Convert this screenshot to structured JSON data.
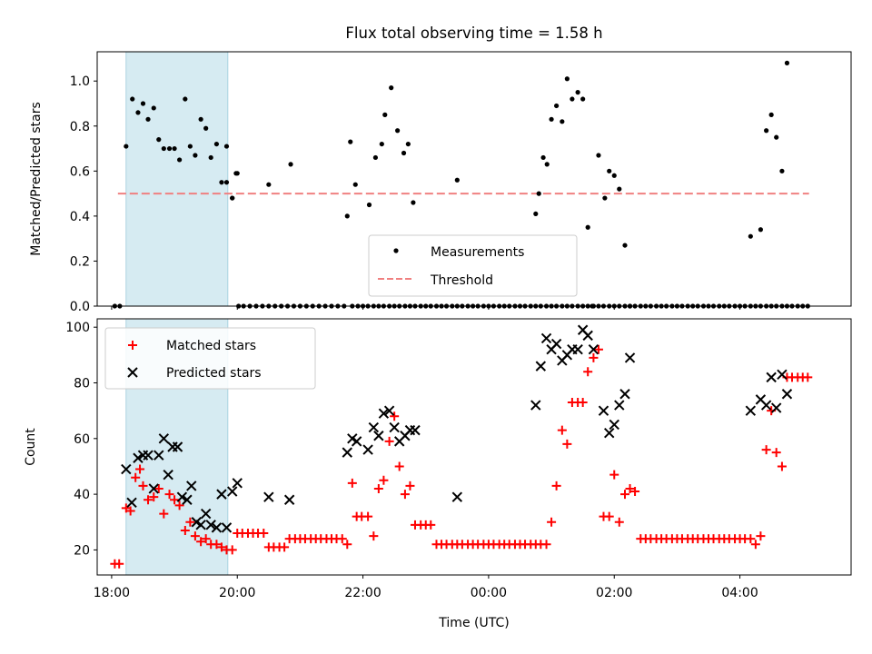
{
  "chart_data": [
    {
      "type": "scatter",
      "title": "Flux total observing time = 1.58 h",
      "xlabel": "",
      "ylabel": "Matched/Predicted stars",
      "xlim": [
        17.77,
        29.77
      ],
      "ylim": [
        0,
        1.13
      ],
      "yticks": [
        0.0,
        0.2,
        0.4,
        0.6,
        0.8,
        1.0
      ],
      "ytick_labels": [
        "0.0",
        "0.2",
        "0.4",
        "0.6",
        "0.8",
        "1.0"
      ],
      "xticks": [
        18,
        20,
        22,
        24,
        26,
        28
      ],
      "highlight_span": [
        18.23,
        19.85
      ],
      "legend": {
        "position": "lower-center",
        "entries": [
          "Measurements",
          "Threshold"
        ]
      },
      "threshold": {
        "name": "Threshold",
        "y": 0.5,
        "x_range": [
          18.1,
          29.1
        ],
        "color": "#f08080"
      },
      "series": [
        {
          "name": "Measurements",
          "marker": "dot",
          "color": "#000000",
          "x": [
            18.05,
            18.13,
            18.23,
            18.33,
            18.42,
            18.5,
            18.58,
            18.67,
            18.75,
            18.83,
            18.92,
            19.0,
            19.08,
            19.17,
            19.25,
            19.33,
            19.42,
            19.5,
            19.58,
            19.67,
            19.75,
            19.83,
            19.92,
            20.0,
            20.02,
            20.1,
            20.2,
            20.3,
            20.4,
            20.5,
            20.6,
            20.7,
            20.8,
            20.9,
            21.0,
            21.1,
            21.2,
            21.3,
            21.4,
            21.5,
            21.6,
            21.7,
            21.83,
            21.92,
            22.0,
            22.08,
            22.17,
            22.25,
            22.33,
            22.42,
            22.5,
            22.58,
            22.67,
            22.75,
            22.83,
            22.92,
            23.0,
            23.08,
            23.17,
            23.25,
            23.33,
            23.42,
            23.5,
            23.58,
            23.67,
            23.75,
            23.83,
            23.92,
            24.0,
            24.08,
            24.17,
            24.25,
            24.33,
            24.42,
            24.5,
            24.58,
            24.67,
            24.75,
            24.83,
            24.92,
            25.0,
            25.08,
            25.17,
            25.25,
            25.33,
            25.42,
            25.5,
            25.58,
            25.67,
            25.75,
            25.83,
            25.92,
            26.0,
            26.08,
            26.17,
            26.25,
            26.33,
            26.42,
            26.5,
            26.58,
            26.67,
            26.75,
            26.83,
            26.92,
            27.0,
            27.08,
            27.17,
            27.25,
            27.33,
            27.42,
            27.5,
            27.58,
            27.67,
            27.75,
            27.83,
            27.92,
            28.0,
            28.08,
            28.17,
            28.25,
            28.33,
            28.42,
            28.5,
            28.58,
            28.67,
            28.75,
            28.83,
            28.92,
            29.0,
            29.08,
            20.5,
            20.85,
            21.75,
            21.8,
            21.88,
            22.1,
            22.2,
            22.3,
            22.35,
            22.45,
            22.55,
            22.65,
            22.72,
            22.8,
            23.5,
            24.75,
            24.8,
            24.87,
            24.93,
            25.0,
            25.08,
            25.17,
            25.25,
            25.33,
            25.42,
            25.5,
            25.58,
            25.65,
            25.75,
            25.85,
            25.92,
            26.0,
            26.08,
            26.17,
            26.25,
            28.17,
            28.33,
            28.42,
            28.5,
            28.58,
            28.67,
            28.75,
            19.83,
            19.92,
            19.98
          ],
          "y": [
            0.0,
            0.0,
            0.71,
            0.92,
            0.86,
            0.9,
            0.83,
            0.88,
            0.74,
            0.7,
            0.7,
            0.7,
            0.65,
            0.92,
            0.71,
            0.67,
            0.83,
            0.79,
            0.66,
            0.72,
            0.55,
            0.71,
            0.48,
            0.59,
            0.0,
            0.0,
            0.0,
            0.0,
            0.0,
            0.0,
            0.0,
            0.0,
            0.0,
            0.0,
            0.0,
            0.0,
            0.0,
            0.0,
            0.0,
            0.0,
            0.0,
            0.0,
            0.0,
            0.0,
            0.0,
            0.0,
            0.0,
            0.0,
            0.0,
            0.0,
            0.0,
            0.0,
            0.0,
            0.0,
            0.0,
            0.0,
            0.0,
            0.0,
            0.0,
            0.0,
            0.0,
            0.0,
            0.0,
            0.0,
            0.0,
            0.0,
            0.0,
            0.0,
            0.0,
            0.0,
            0.0,
            0.0,
            0.0,
            0.0,
            0.0,
            0.0,
            0.0,
            0.0,
            0.0,
            0.0,
            0.0,
            0.0,
            0.0,
            0.0,
            0.0,
            0.0,
            0.0,
            0.0,
            0.0,
            0.0,
            0.0,
            0.0,
            0.0,
            0.0,
            0.0,
            0.0,
            0.0,
            0.0,
            0.0,
            0.0,
            0.0,
            0.0,
            0.0,
            0.0,
            0.0,
            0.0,
            0.0,
            0.0,
            0.0,
            0.0,
            0.0,
            0.0,
            0.0,
            0.0,
            0.0,
            0.0,
            0.0,
            0.0,
            0.0,
            0.0,
            0.0,
            0.0,
            0.0,
            0.0,
            0.0,
            0.0,
            0.0,
            0.0,
            0.0,
            0.0,
            0.54,
            0.63,
            0.4,
            0.73,
            0.54,
            0.45,
            0.66,
            0.72,
            0.85,
            0.97,
            0.78,
            0.68,
            0.72,
            0.46,
            0.56,
            0.41,
            0.5,
            0.66,
            0.63,
            0.83,
            0.89,
            0.82,
            1.01,
            0.92,
            0.95,
            0.92,
            0.35,
            0.0,
            0.67,
            0.48,
            0.6,
            0.58,
            0.52,
            0.27,
            0.0,
            0.31,
            0.34,
            0.78,
            0.85,
            0.75,
            0.6,
            1.08,
            0.55,
            0.48,
            0.59
          ]
        }
      ]
    },
    {
      "type": "scatter",
      "title": "",
      "xlabel": "Time (UTC)",
      "ylabel": "Count",
      "xlim": [
        17.77,
        29.77
      ],
      "ylim": [
        11,
        103
      ],
      "yticks": [
        20,
        40,
        60,
        80,
        100
      ],
      "ytick_labels": [
        "20",
        "40",
        "60",
        "80",
        "100"
      ],
      "xticks": [
        18,
        20,
        22,
        24,
        26,
        28
      ],
      "xtick_labels": [
        "18:00",
        "20:00",
        "22:00",
        "00:00",
        "02:00",
        "04:00"
      ],
      "highlight_span": [
        18.23,
        19.85
      ],
      "legend": {
        "position": "top-left",
        "entries": [
          "Matched stars",
          "Predicted stars"
        ]
      },
      "series": [
        {
          "name": "Matched stars",
          "marker": "plus",
          "color": "#ff0000",
          "x": [
            18.05,
            18.12,
            18.23,
            18.3,
            18.38,
            18.45,
            18.5,
            18.58,
            18.67,
            18.75,
            18.83,
            18.92,
            19.0,
            19.08,
            19.17,
            19.25,
            19.33,
            19.42,
            19.5,
            19.58,
            19.67,
            19.75,
            19.83,
            19.92,
            20.0,
            20.08,
            20.17,
            20.25,
            20.33,
            20.42,
            20.5,
            20.58,
            20.67,
            20.75,
            20.83,
            20.92,
            21.0,
            21.08,
            21.17,
            21.25,
            21.33,
            21.42,
            21.5,
            21.58,
            21.67,
            21.75,
            21.83,
            21.9,
            21.98,
            22.08,
            22.17,
            22.25,
            22.33,
            22.42,
            22.5,
            22.58,
            22.67,
            22.75,
            22.83,
            22.92,
            23.0,
            23.08,
            23.17,
            23.25,
            23.33,
            23.42,
            23.5,
            23.58,
            23.67,
            23.75,
            23.83,
            23.92,
            24.0,
            24.08,
            24.17,
            24.25,
            24.33,
            24.42,
            24.5,
            24.58,
            24.67,
            24.75,
            24.83,
            24.92,
            25.0,
            25.08,
            25.17,
            25.25,
            25.33,
            25.42,
            25.5,
            25.58,
            25.67,
            25.75,
            25.83,
            25.92,
            26.0,
            26.08,
            26.17,
            26.25,
            26.33,
            26.42,
            26.5,
            26.58,
            26.67,
            26.75,
            26.83,
            26.92,
            27.0,
            27.08,
            27.17,
            27.25,
            27.33,
            27.42,
            27.5,
            27.58,
            27.67,
            27.75,
            27.83,
            27.92,
            28.0,
            28.08,
            28.17,
            28.25,
            28.33,
            28.42,
            28.5,
            28.58,
            28.67,
            28.75,
            28.83,
            28.92,
            29.0,
            29.08
          ],
          "y": [
            15,
            15,
            35,
            34,
            46,
            49,
            43,
            38,
            39,
            42,
            33,
            40,
            38,
            36,
            27,
            30,
            25,
            23,
            24,
            22,
            22,
            21,
            20,
            20,
            26,
            26,
            26,
            26,
            26,
            26,
            21,
            21,
            21,
            21,
            24,
            24,
            24,
            24,
            24,
            24,
            24,
            24,
            24,
            24,
            24,
            22,
            44,
            32,
            32,
            32,
            25,
            42,
            45,
            59,
            68,
            50,
            40,
            43,
            29,
            29,
            29,
            29,
            22,
            22,
            22,
            22,
            22,
            22,
            22,
            22,
            22,
            22,
            22,
            22,
            22,
            22,
            22,
            22,
            22,
            22,
            22,
            22,
            22,
            22,
            30,
            43,
            63,
            58,
            73,
            73,
            73,
            84,
            89,
            92,
            32,
            32,
            47,
            30,
            40,
            42,
            41,
            24,
            24,
            24,
            24,
            24,
            24,
            24,
            24,
            24,
            24,
            24,
            24,
            24,
            24,
            24,
            24,
            24,
            24,
            24,
            24,
            24,
            24,
            22,
            25,
            56,
            70,
            55,
            50,
            82,
            82,
            82,
            82,
            82
          ]
        },
        {
          "name": "Predicted stars",
          "marker": "x",
          "color": "#000000",
          "x": [
            18.23,
            18.32,
            18.42,
            18.5,
            18.58,
            18.67,
            18.75,
            18.83,
            18.9,
            18.97,
            19.05,
            19.12,
            19.2,
            19.27,
            19.35,
            19.42,
            19.5,
            19.58,
            19.67,
            19.75,
            19.83,
            19.92,
            20.0,
            20.5,
            20.83,
            21.75,
            21.83,
            21.9,
            22.08,
            22.17,
            22.25,
            22.33,
            22.42,
            22.5,
            22.58,
            22.67,
            22.75,
            22.83,
            23.5,
            24.75,
            24.83,
            24.92,
            25.0,
            25.08,
            25.17,
            25.25,
            25.33,
            25.42,
            25.5,
            25.58,
            25.67,
            25.83,
            25.92,
            26.0,
            26.08,
            26.17,
            26.25,
            28.17,
            28.33,
            28.42,
            28.5,
            28.58,
            28.67,
            28.75
          ],
          "y": [
            49,
            37,
            53,
            54,
            54,
            42,
            54,
            60,
            47,
            57,
            57,
            39,
            38,
            43,
            30,
            29,
            33,
            29,
            28,
            40,
            28,
            41,
            44,
            39,
            38,
            55,
            60,
            59,
            56,
            64,
            61,
            69,
            70,
            64,
            59,
            61,
            63,
            63,
            39,
            72,
            86,
            96,
            92,
            94,
            88,
            90,
            92,
            92,
            99,
            97,
            92,
            70,
            62,
            65,
            72,
            76,
            89,
            70,
            74,
            72,
            82,
            71,
            83,
            76
          ]
        }
      ]
    }
  ]
}
